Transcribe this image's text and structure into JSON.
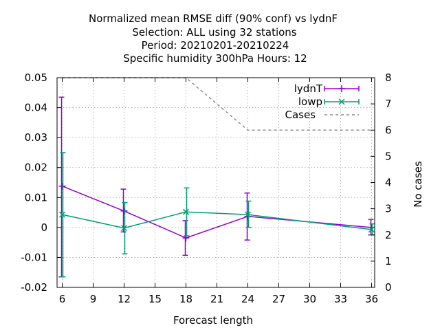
{
  "chart_data": {
    "type": "line",
    "title_lines": [
      "Normalized mean RMSE diff (90% conf) vs lydnF",
      "Selection: ALL using    32 stations",
      "Period: 20210201-20210224",
      "Specific humidity 300hPa   Hours:  12"
    ],
    "xlabel": "Forecast length",
    "ylabel": "",
    "y2label": "No cases",
    "xlim": [
      5.5,
      36.3
    ],
    "ylim": [
      -0.02,
      0.05
    ],
    "y2lim": [
      0,
      8
    ],
    "xticks": [
      6,
      9,
      12,
      15,
      18,
      21,
      24,
      27,
      30,
      33,
      36
    ],
    "yticks": [
      -0.02,
      -0.01,
      0,
      0.01,
      0.02,
      0.03,
      0.04,
      0.05
    ],
    "ytick_labels": [
      "-0.02",
      "-0.01",
      "0",
      "0.01",
      "0.02",
      "0.03",
      "0.04",
      "0.05"
    ],
    "y2ticks": [
      0,
      1,
      2,
      3,
      4,
      5,
      6,
      7,
      8
    ],
    "grid": true,
    "legend_position": "top-right",
    "x": [
      6,
      12,
      18,
      24,
      36
    ],
    "series": [
      {
        "name": "lydnT",
        "color": "#9400d3",
        "marker": "plus",
        "values": [
          0.0138,
          0.0055,
          -0.0035,
          0.0037,
          0.0
        ],
        "err_low": [
          -0.0165,
          -0.0015,
          -0.0093,
          -0.0042,
          -0.0025
        ],
        "err_high": [
          0.0435,
          0.0128,
          0.0023,
          0.0115,
          0.0027
        ]
      },
      {
        "name": "lowp",
        "color": "#009e73",
        "marker": "x",
        "values": [
          0.0043,
          -0.0002,
          0.0052,
          0.0043,
          -0.0007
        ],
        "err_low": [
          -0.0165,
          -0.0088,
          -0.0028,
          0.0,
          -0.0025
        ],
        "err_high": [
          0.025,
          0.0083,
          0.0132,
          0.0088,
          0.0012
        ]
      }
    ],
    "cases": {
      "name": "Cases",
      "color": "#8c8c8c",
      "axis": "y2",
      "x": [
        6,
        18,
        24,
        36
      ],
      "values": [
        8,
        8,
        6,
        6
      ]
    }
  }
}
